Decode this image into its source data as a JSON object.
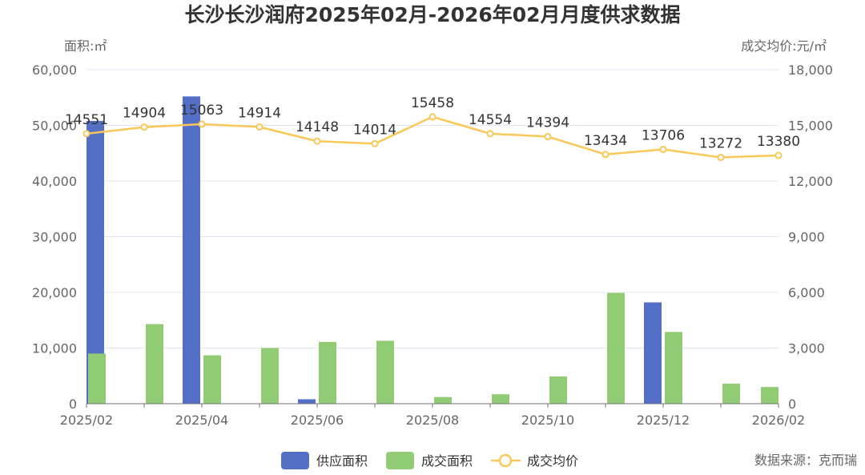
{
  "chart_data": {
    "type": "bar",
    "title": "长沙长沙润府2025年02月-2026年02月月度供求数据",
    "left_axis_unit": "面积:㎡",
    "right_axis_unit": "成交均价:元/㎡",
    "categories": [
      "2025/02",
      "2025/03",
      "2025/04",
      "2025/05",
      "2025/06",
      "2025/07",
      "2025/08",
      "2025/09",
      "2025/10",
      "2025/11",
      "2025/12",
      "2026/01",
      "2026/02"
    ],
    "x_tick_labels": [
      "2025/02",
      "2025/04",
      "2025/06",
      "2025/08",
      "2025/10",
      "2025/12",
      "2026/02"
    ],
    "y_left": {
      "min": 0,
      "max": 60000,
      "ticks": [
        "0",
        "10,000",
        "20,000",
        "30,000",
        "40,000",
        "50,000",
        "60,000"
      ]
    },
    "y_right": {
      "min": 0,
      "max": 18000,
      "ticks": [
        "0",
        "3,000",
        "6,000",
        "9,000",
        "12,000",
        "15,000",
        "18,000"
      ]
    },
    "grid": true,
    "legend_position": "bottom",
    "series": [
      {
        "name": "供应面积",
        "type": "bar",
        "axis": "left",
        "color": "#5470c6",
        "values": [
          50800,
          0,
          55200,
          0,
          800,
          0,
          0,
          0,
          0,
          0,
          18200,
          0,
          0
        ]
      },
      {
        "name": "成交面积",
        "type": "bar",
        "axis": "left",
        "color": "#91cc75",
        "values": [
          9000,
          14300,
          8700,
          10000,
          11100,
          11300,
          1200,
          1700,
          4900,
          19900,
          12900,
          3600,
          3000
        ]
      },
      {
        "name": "成交均价",
        "type": "line",
        "axis": "right",
        "color": "#fac858",
        "values": [
          14551,
          14904,
          15063,
          14914,
          14148,
          14014,
          15458,
          14554,
          14394,
          13434,
          13706,
          13272,
          13380
        ]
      }
    ],
    "source": "数据来源：克而瑞"
  }
}
